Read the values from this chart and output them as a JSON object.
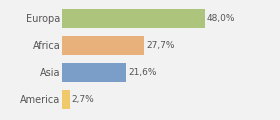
{
  "categories": [
    "America",
    "Asia",
    "Africa",
    "Europa"
  ],
  "values": [
    2.7,
    21.6,
    27.7,
    48.0
  ],
  "labels": [
    "2,7%",
    "21,6%",
    "27,7%",
    "48,0%"
  ],
  "bar_colors": [
    "#f0c96a",
    "#7b9ec9",
    "#e8b07a",
    "#adc47d"
  ],
  "background_color": "#f2f2f2",
  "xlim": [
    0,
    62
  ]
}
